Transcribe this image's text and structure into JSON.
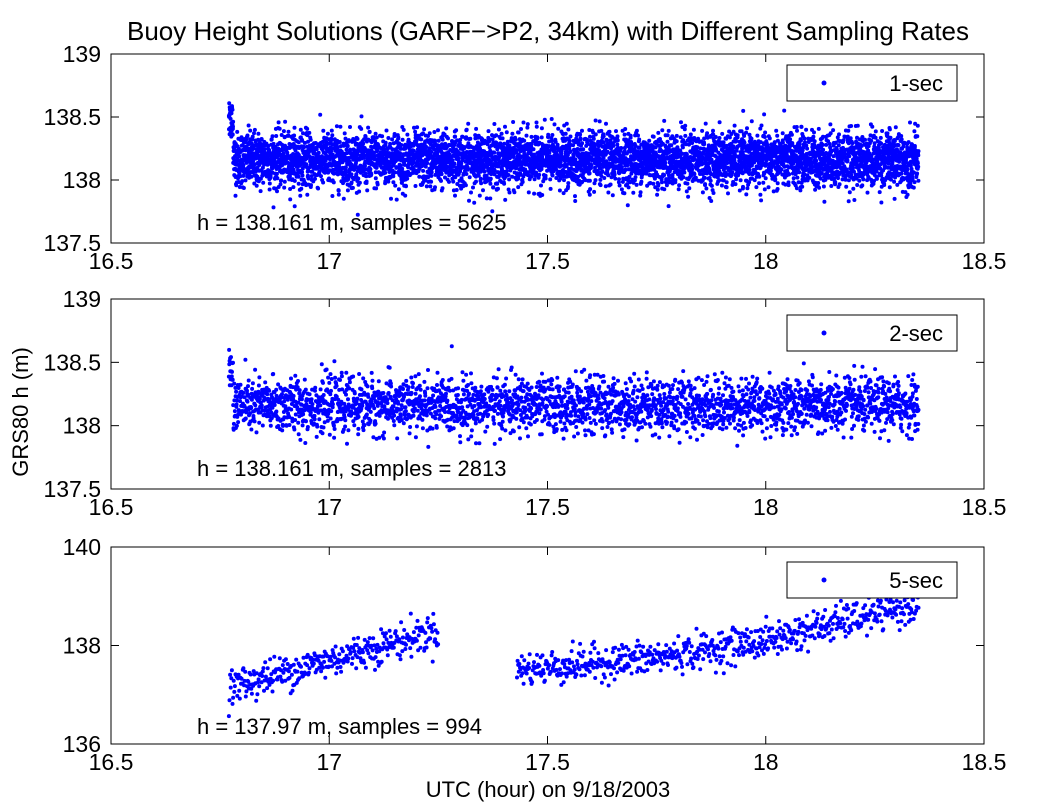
{
  "title": "Buoy Height Solutions (GARF−>P2, 34km) with Different Sampling Rates",
  "shared_xlabel": "UTC (hour) on 9/18/2003",
  "shared_ylabel": "GRS80 h (m)",
  "colors": {
    "points": "#0000ff",
    "axes": "#000000",
    "background": "#ffffff"
  },
  "chart_data": [
    {
      "type": "scatter",
      "title": "",
      "xlabel": "",
      "ylabel": "",
      "xlim": [
        16.5,
        18.5
      ],
      "ylim": [
        137.5,
        139
      ],
      "xticks": [
        "16.5",
        "17",
        "17.5",
        "18",
        "18.5"
      ],
      "yticks": [
        "137.5",
        "138",
        "138.5",
        "139"
      ],
      "grid": false,
      "legend": "top-right",
      "series": [
        {
          "name": "1-sec",
          "x_range": [
            16.77,
            18.35
          ],
          "gap": null,
          "points_per_hour": 3600,
          "y_mean": 138.161,
          "y_spread": 0.34,
          "trend": [],
          "sample_x": [
            16.77,
            16.8,
            17.0,
            17.25,
            17.5,
            17.75,
            18.0,
            18.25,
            18.35
          ],
          "sample_y": [
            138.55,
            138.15,
            138.2,
            138.2,
            138.18,
            138.15,
            138.1,
            138.2,
            138.25
          ]
        }
      ],
      "annotation": "h = 138.161 m, samples = 5625"
    },
    {
      "type": "scatter",
      "title": "",
      "xlabel": "",
      "ylabel": "",
      "xlim": [
        16.5,
        18.5
      ],
      "ylim": [
        137.5,
        139
      ],
      "xticks": [
        "16.5",
        "17",
        "17.5",
        "18",
        "18.5"
      ],
      "yticks": [
        "137.5",
        "138",
        "138.5",
        "139"
      ],
      "grid": false,
      "legend": "top-right",
      "series": [
        {
          "name": "2-sec",
          "x_range": [
            16.77,
            18.35
          ],
          "gap": null,
          "points_per_hour": 1800,
          "y_mean": 138.161,
          "y_spread": 0.34,
          "trend": [],
          "sample_x": [
            16.77,
            16.8,
            17.0,
            17.25,
            17.5,
            17.75,
            18.0,
            18.25,
            18.35
          ],
          "sample_y": [
            138.55,
            138.15,
            138.2,
            138.2,
            138.18,
            138.15,
            138.1,
            138.2,
            138.25
          ]
        }
      ],
      "annotation": "h = 138.161 m, samples = 2813"
    },
    {
      "type": "scatter",
      "title": "",
      "xlabel": "UTC (hour) on 9/18/2003",
      "ylabel": "",
      "xlim": [
        16.5,
        18.5
      ],
      "ylim": [
        136,
        140
      ],
      "xticks": [
        "16.5",
        "17",
        "17.5",
        "18",
        "18.5"
      ],
      "yticks": [
        "136",
        "138",
        "140"
      ],
      "grid": false,
      "legend": "top-right",
      "series": [
        {
          "name": "5-sec",
          "x_range": [
            16.77,
            18.35
          ],
          "gap": [
            17.25,
            17.43
          ],
          "points_per_hour": 720,
          "y_mean": 137.97,
          "y_spread": 0.55,
          "trend": [
            [
              16.77,
              137.15
            ],
            [
              17.25,
              138.3
            ],
            [
              17.43,
              137.5
            ],
            [
              17.75,
              137.75
            ],
            [
              18.0,
              138.1
            ],
            [
              18.35,
              138.85
            ]
          ],
          "sample_x": [
            16.77,
            17.0,
            17.25,
            17.43,
            17.75,
            18.0,
            18.35
          ],
          "sample_y": [
            137.15,
            137.7,
            138.3,
            137.5,
            137.75,
            138.1,
            138.85
          ]
        }
      ],
      "annotation": "h = 137.97 m, samples = 994"
    }
  ]
}
